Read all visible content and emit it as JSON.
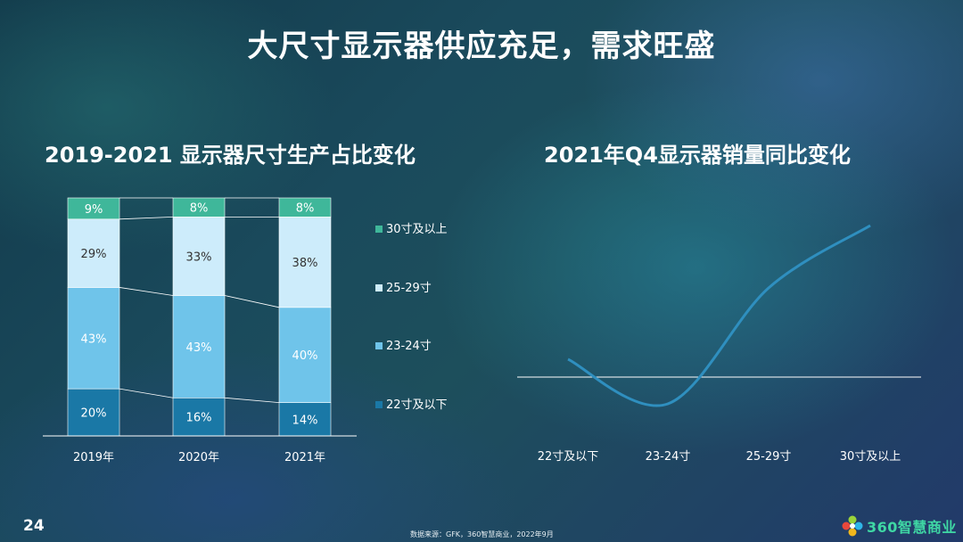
{
  "page": {
    "title": "大尺寸显示器供应充足，需求旺盛",
    "page_number": "24",
    "source": "数据来源：GFK，360智慧商业，2022年9月",
    "logo_text": "360智慧商业"
  },
  "chart_data": [
    {
      "type": "bar",
      "stacked": true,
      "percent_stacked": true,
      "title": "2019-2021 显示器尺寸生产占比变化",
      "categories": [
        "2019年",
        "2020年",
        "2021年"
      ],
      "series": [
        {
          "name": "22寸及以下",
          "values": [
            20,
            16,
            14
          ],
          "labels": [
            "20%",
            "16%",
            "14%"
          ],
          "color": "#1a78a6"
        },
        {
          "name": "23-24寸",
          "values": [
            43,
            43,
            40
          ],
          "labels": [
            "43%",
            "43%",
            "40%"
          ],
          "color": "#6fc4ea"
        },
        {
          "name": "25-29寸",
          "values": [
            29,
            33,
            38
          ],
          "labels": [
            "29%",
            "33%",
            "38%"
          ],
          "color": "#cdecfb"
        },
        {
          "name": "30寸及以上",
          "values": [
            9,
            8,
            8
          ],
          "labels": [
            "9%",
            "8%",
            "8%"
          ],
          "color": "#3fb79a"
        }
      ],
      "legend_position": "right",
      "grid": false
    },
    {
      "type": "line",
      "title": "2021年Q4显示器销量同比变化",
      "categories": [
        "22寸及以下",
        "23-24寸",
        "25-29寸",
        "30寸及以上"
      ],
      "series": [
        {
          "values": [
            0.2,
            -0.3,
            1.0,
            1.7
          ],
          "color": "#2f8fbf"
        }
      ],
      "smooth": true,
      "baseline": 0,
      "grid": false
    }
  ]
}
